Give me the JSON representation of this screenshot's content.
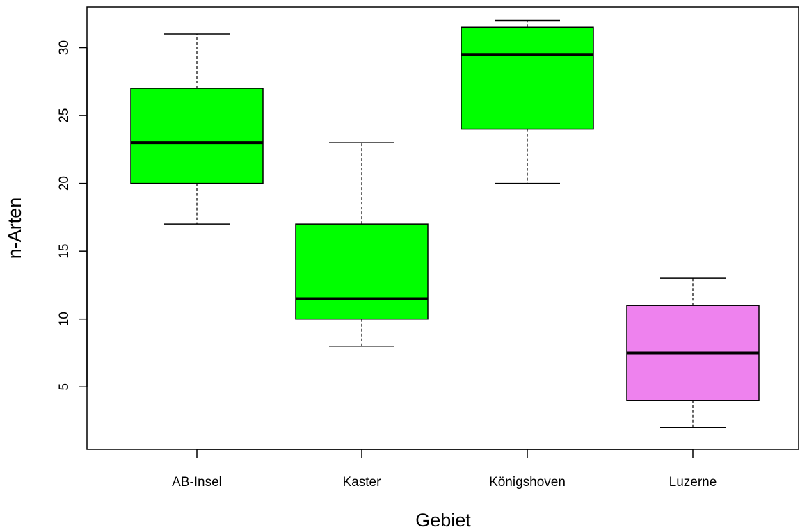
{
  "chart_data": {
    "type": "boxplot",
    "title": "",
    "xlabel": "Gebiet",
    "ylabel": "n-Arten",
    "ylim": [
      0.4,
      33.0
    ],
    "y_ticks": [
      5,
      10,
      15,
      20,
      25,
      30
    ],
    "grid": false,
    "legend": "none",
    "categories": [
      "AB-Insel",
      "Kaster",
      "Königshoven",
      "Luzerne"
    ],
    "boxes": [
      {
        "category": "AB-Insel",
        "whisker_low": 17,
        "q1": 20,
        "median": 23,
        "q3": 27,
        "whisker_high": 31,
        "color": "#00ff00"
      },
      {
        "category": "Kaster",
        "whisker_low": 8,
        "q1": 10,
        "median": 11.5,
        "q3": 17,
        "whisker_high": 23,
        "color": "#00ff00"
      },
      {
        "category": "Königshoven",
        "whisker_low": 20,
        "q1": 24,
        "median": 29.5,
        "q3": 31.5,
        "whisker_high": 32,
        "color": "#00ff00"
      },
      {
        "category": "Luzerne",
        "whisker_low": 2,
        "q1": 4,
        "median": 7.5,
        "q3": 11,
        "whisker_high": 13,
        "color": "#ee82ee"
      }
    ]
  }
}
